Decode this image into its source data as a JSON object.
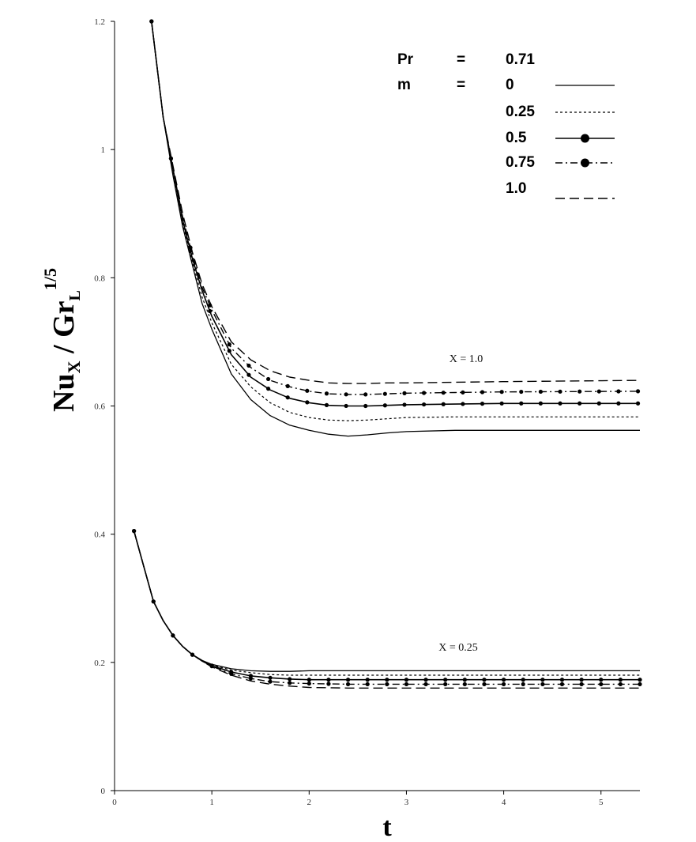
{
  "chart_data": {
    "type": "line",
    "xlabel": "t",
    "ylabel": {
      "main": "Nu",
      "sub1": "X",
      "sep": " / Gr",
      "sub2": "L",
      "sup": "1/5"
    },
    "xlim": [
      0,
      5.4
    ],
    "ylim": [
      0,
      1.2
    ],
    "x_ticks": [
      0,
      1,
      2,
      3,
      4,
      5
    ],
    "y_ticks": [
      0,
      0.2,
      0.4,
      0.6,
      0.8,
      1,
      1.2
    ],
    "grid": false,
    "legend": {
      "position": "top-right",
      "params": [
        {
          "name": "Pr",
          "eq": "=",
          "value": "0.71"
        },
        {
          "name": "m",
          "eq": "=",
          "value": "0"
        }
      ],
      "entries": [
        "0",
        "0.25",
        "0.5",
        "0.75",
        "1.0"
      ],
      "styles": [
        "solid",
        "dotted",
        "solid-marker",
        "dashdot-marker",
        "dashed"
      ]
    },
    "annotations": [
      "X = 1.0",
      "X = 0.25"
    ],
    "groups": [
      {
        "label": "X = 1.0",
        "series": [
          {
            "name": "0",
            "style": "solid",
            "x": [
              0.38,
              0.5,
              0.6,
              0.7,
              0.8,
              0.9,
              1.0,
              1.2,
              1.4,
              1.6,
              1.8,
              2.0,
              2.2,
              2.4,
              2.6,
              2.8,
              3.0,
              3.5,
              4.0,
              5.4
            ],
            "y": [
              1.2,
              1.05,
              0.96,
              0.88,
              0.82,
              0.76,
              0.72,
              0.65,
              0.61,
              0.585,
              0.57,
              0.562,
              0.556,
              0.553,
              0.555,
              0.558,
              0.56,
              0.562,
              0.562,
              0.562
            ]
          },
          {
            "name": "0.25",
            "style": "dotted",
            "x": [
              0.38,
              0.5,
              0.6,
              0.7,
              0.8,
              0.9,
              1.0,
              1.2,
              1.4,
              1.6,
              1.8,
              2.0,
              2.2,
              2.4,
              2.6,
              2.8,
              3.0,
              3.5,
              4.0,
              5.4
            ],
            "y": [
              1.2,
              1.05,
              0.965,
              0.885,
              0.825,
              0.77,
              0.73,
              0.665,
              0.63,
              0.605,
              0.59,
              0.582,
              0.578,
              0.577,
              0.578,
              0.58,
              0.582,
              0.583,
              0.583,
              0.583
            ]
          },
          {
            "name": "0.5",
            "style": "solid-marker",
            "x": [
              0.38,
              0.5,
              0.6,
              0.7,
              0.8,
              0.9,
              1.0,
              1.2,
              1.4,
              1.6,
              1.8,
              2.0,
              2.2,
              2.4,
              2.6,
              2.8,
              3.0,
              3.5,
              4.0,
              5.4
            ],
            "y": [
              1.2,
              1.05,
              0.97,
              0.89,
              0.83,
              0.78,
              0.74,
              0.68,
              0.645,
              0.625,
              0.612,
              0.605,
              0.601,
              0.6,
              0.6,
              0.601,
              0.602,
              0.603,
              0.604,
              0.604
            ]
          },
          {
            "name": "0.75",
            "style": "dashdot-marker",
            "x": [
              0.38,
              0.5,
              0.6,
              0.7,
              0.8,
              0.9,
              1.0,
              1.2,
              1.4,
              1.6,
              1.8,
              2.0,
              2.2,
              2.4,
              2.6,
              2.8,
              3.0,
              3.5,
              4.0,
              5.4
            ],
            "y": [
              1.2,
              1.05,
              0.97,
              0.895,
              0.835,
              0.785,
              0.75,
              0.69,
              0.66,
              0.64,
              0.63,
              0.623,
              0.619,
              0.618,
              0.618,
              0.619,
              0.62,
              0.621,
              0.622,
              0.623
            ]
          },
          {
            "name": "1.0",
            "style": "dashed",
            "x": [
              0.38,
              0.5,
              0.6,
              0.7,
              0.8,
              0.9,
              1.0,
              1.2,
              1.4,
              1.6,
              1.8,
              2.0,
              2.2,
              2.4,
              2.6,
              2.8,
              3.0,
              3.5,
              4.0,
              5.4
            ],
            "y": [
              1.2,
              1.05,
              0.975,
              0.9,
              0.84,
              0.79,
              0.755,
              0.7,
              0.672,
              0.655,
              0.645,
              0.64,
              0.636,
              0.635,
              0.635,
              0.636,
              0.636,
              0.637,
              0.638,
              0.64
            ]
          }
        ]
      },
      {
        "label": "X = 0.25",
        "series": [
          {
            "name": "0",
            "style": "solid",
            "x": [
              0.2,
              0.3,
              0.4,
              0.5,
              0.6,
              0.7,
              0.8,
              0.9,
              1.0,
              1.2,
              1.4,
              1.6,
              1.8,
              2.0,
              2.4,
              3.0,
              4.0,
              5.4
            ],
            "y": [
              0.405,
              0.35,
              0.295,
              0.265,
              0.242,
              0.225,
              0.212,
              0.203,
              0.197,
              0.19,
              0.187,
              0.186,
              0.186,
              0.187,
              0.187,
              0.187,
              0.187,
              0.187
            ]
          },
          {
            "name": "0.25",
            "style": "dotted",
            "x": [
              0.2,
              0.3,
              0.4,
              0.5,
              0.6,
              0.7,
              0.8,
              0.9,
              1.0,
              1.2,
              1.4,
              1.6,
              1.8,
              2.0,
              2.4,
              3.0,
              4.0,
              5.4
            ],
            "y": [
              0.405,
              0.35,
              0.295,
              0.265,
              0.242,
              0.225,
              0.212,
              0.203,
              0.196,
              0.188,
              0.184,
              0.181,
              0.18,
              0.18,
              0.18,
              0.18,
              0.18,
              0.18
            ]
          },
          {
            "name": "0.5",
            "style": "solid-marker",
            "x": [
              0.2,
              0.3,
              0.4,
              0.5,
              0.6,
              0.7,
              0.8,
              0.9,
              1.0,
              1.2,
              1.4,
              1.6,
              1.8,
              2.0,
              2.4,
              3.0,
              4.0,
              5.4
            ],
            "y": [
              0.405,
              0.35,
              0.295,
              0.265,
              0.242,
              0.225,
              0.212,
              0.203,
              0.195,
              0.185,
              0.179,
              0.176,
              0.174,
              0.173,
              0.173,
              0.173,
              0.173,
              0.173
            ]
          },
          {
            "name": "0.75",
            "style": "dashdot-marker",
            "x": [
              0.2,
              0.3,
              0.4,
              0.5,
              0.6,
              0.7,
              0.8,
              0.9,
              1.0,
              1.2,
              1.4,
              1.6,
              1.8,
              2.0,
              2.4,
              3.0,
              4.0,
              5.4
            ],
            "y": [
              0.405,
              0.35,
              0.295,
              0.265,
              0.242,
              0.225,
              0.212,
              0.202,
              0.194,
              0.182,
              0.175,
              0.17,
              0.168,
              0.167,
              0.166,
              0.166,
              0.166,
              0.166
            ]
          },
          {
            "name": "1.0",
            "style": "dashed",
            "x": [
              0.2,
              0.3,
              0.4,
              0.5,
              0.6,
              0.7,
              0.8,
              0.9,
              1.0,
              1.2,
              1.4,
              1.6,
              1.8,
              2.0,
              2.4,
              3.0,
              4.0,
              5.4
            ],
            "y": [
              0.405,
              0.35,
              0.295,
              0.265,
              0.242,
              0.225,
              0.212,
              0.202,
              0.193,
              0.18,
              0.171,
              0.166,
              0.163,
              0.161,
              0.16,
              0.16,
              0.16,
              0.16
            ]
          }
        ]
      }
    ]
  }
}
